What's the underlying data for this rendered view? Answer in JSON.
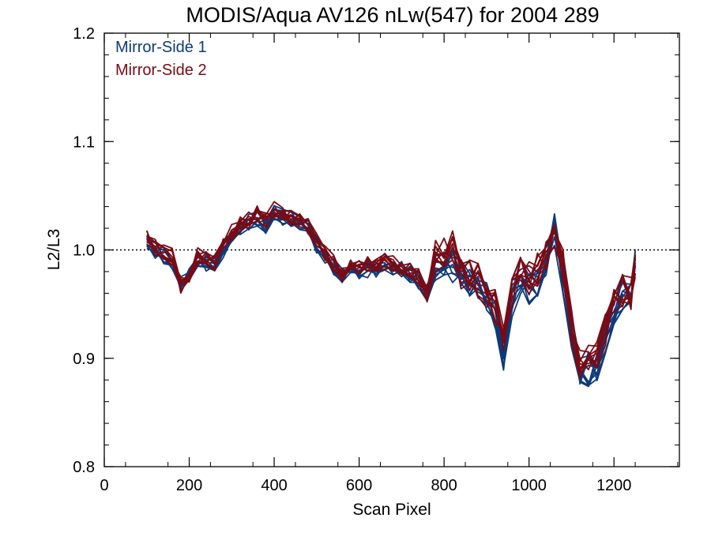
{
  "chart_data": {
    "type": "line",
    "title": "MODIS/Aqua AV126 nLw(547) for 2004 289",
    "xlabel": "Scan Pixel",
    "ylabel": "L2/L3",
    "xlim": [
      0,
      1354
    ],
    "ylim": [
      0.8,
      1.2
    ],
    "xticks": [
      0,
      200,
      400,
      600,
      800,
      1000,
      1200
    ],
    "yticks": [
      0.8,
      0.9,
      1.0,
      1.1,
      1.2
    ],
    "xtick_labels": [
      "0",
      "200",
      "400",
      "600",
      "800",
      "1000",
      "1200"
    ],
    "ytick_labels": [
      "0.8",
      "0.9",
      "1.0",
      "1.1",
      "1.2"
    ],
    "reference_line": {
      "y": 1.0,
      "style": "dotted"
    },
    "legend_position": "top-left",
    "x": [
      100,
      120,
      140,
      160,
      180,
      200,
      220,
      240,
      260,
      280,
      300,
      320,
      340,
      360,
      380,
      400,
      420,
      440,
      460,
      480,
      500,
      520,
      540,
      560,
      580,
      600,
      620,
      640,
      660,
      680,
      700,
      720,
      740,
      760,
      780,
      800,
      820,
      840,
      860,
      880,
      900,
      920,
      940,
      960,
      980,
      1000,
      1020,
      1040,
      1060,
      1080,
      1100,
      1120,
      1140,
      1160,
      1180,
      1200,
      1220,
      1240,
      1250
    ],
    "series": [
      {
        "name": "Mirror-Side 1",
        "color": "#0d3a7a",
        "values": [
          1.005,
          1.0,
          0.995,
          0.99,
          0.972,
          0.975,
          0.992,
          0.988,
          0.985,
          1.0,
          1.012,
          1.02,
          1.025,
          1.03,
          1.022,
          1.035,
          1.03,
          1.028,
          1.025,
          1.02,
          1.005,
          0.995,
          0.985,
          0.975,
          0.985,
          0.98,
          0.982,
          0.98,
          0.988,
          0.985,
          0.982,
          0.978,
          0.972,
          0.96,
          0.985,
          0.99,
          0.985,
          0.975,
          0.97,
          0.965,
          0.955,
          0.94,
          0.905,
          0.95,
          0.975,
          0.965,
          0.97,
          0.985,
          1.02,
          0.975,
          0.92,
          0.885,
          0.89,
          0.895,
          0.92,
          0.945,
          0.96,
          0.955,
          0.99
        ]
      },
      {
        "name": "Mirror-Side 2",
        "color": "#7a0a14",
        "values": [
          1.01,
          1.003,
          0.998,
          0.994,
          0.968,
          0.978,
          0.995,
          0.992,
          0.988,
          1.004,
          1.016,
          1.023,
          1.028,
          1.034,
          1.027,
          1.038,
          1.034,
          1.031,
          1.029,
          1.023,
          1.008,
          0.998,
          0.988,
          0.978,
          0.988,
          0.983,
          0.986,
          0.984,
          0.99,
          0.988,
          0.985,
          0.982,
          0.975,
          0.958,
          0.993,
          0.996,
          1.003,
          0.98,
          0.978,
          0.972,
          0.962,
          0.948,
          0.915,
          0.96,
          0.985,
          0.975,
          0.982,
          0.995,
          1.01,
          0.985,
          0.93,
          0.895,
          0.898,
          0.9,
          0.925,
          0.95,
          0.963,
          0.96,
          0.985
        ]
      }
    ]
  }
}
